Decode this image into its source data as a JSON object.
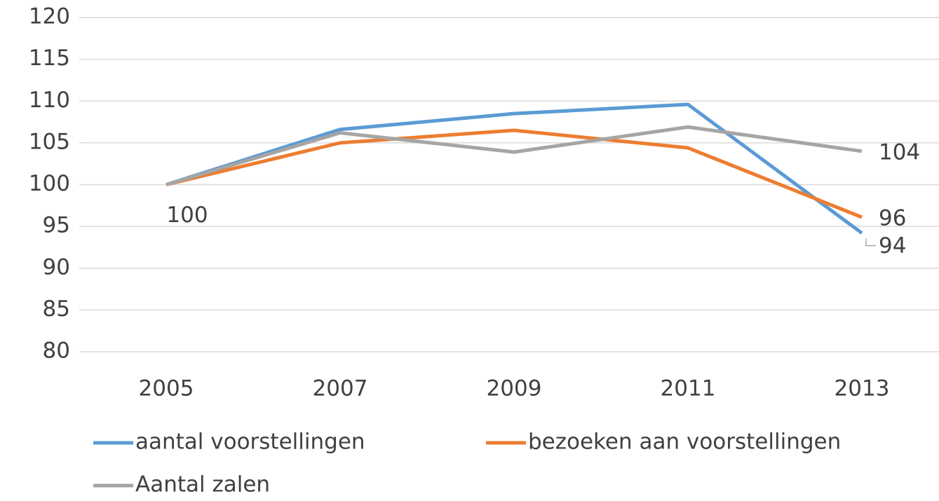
{
  "chart_data": {
    "type": "line",
    "categories": [
      "2005",
      "2007",
      "2009",
      "2011",
      "2013"
    ],
    "series": [
      {
        "name": "aantal voorstellingen",
        "color": "#5b9bd5",
        "values": [
          100,
          106.6,
          108.5,
          109.6,
          94.2
        ],
        "value_labels": [
          null,
          null,
          null,
          null,
          "94"
        ]
      },
      {
        "name": "bezoeken aan voorstellingen",
        "color": "#ed7d31",
        "values": [
          100,
          105.0,
          106.5,
          104.4,
          96.1
        ],
        "value_labels": [
          null,
          null,
          null,
          null,
          "96"
        ]
      },
      {
        "name": "Aantal zalen",
        "color": "#a5a5a5",
        "values": [
          100,
          106.2,
          103.9,
          106.9,
          104
        ],
        "value_labels": [
          "100",
          null,
          null,
          null,
          "104"
        ]
      }
    ],
    "ylim": [
      80,
      120
    ],
    "yticks": [
      80,
      85,
      90,
      95,
      100,
      105,
      110,
      115,
      120
    ],
    "grid": true,
    "legend": "bottom"
  }
}
